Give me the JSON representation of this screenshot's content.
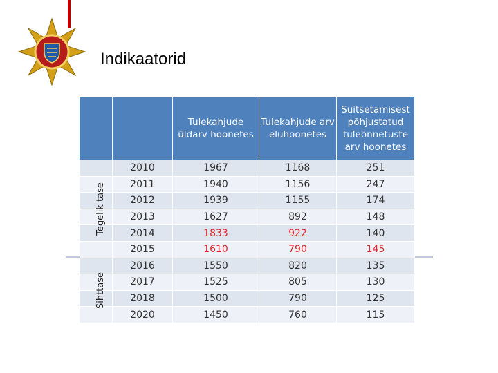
{
  "header": {
    "title": "Indikaatorid"
  },
  "table": {
    "columns": [
      "",
      "",
      "Tulekahjude üldarv hoonetes",
      "Tulekahjude arv eluhoonetes",
      "Suitsetamisest põhjustatud tuleõnnetuste arv hoonetes"
    ],
    "groups": [
      {
        "label": "Tegelik tase",
        "rows": 6
      },
      {
        "label": "Sihttase",
        "rows": 4
      }
    ],
    "rows": [
      [
        2010,
        1967,
        1168,
        251
      ],
      [
        2011,
        1940,
        1156,
        247
      ],
      [
        2012,
        1939,
        1155,
        174
      ],
      [
        2013,
        1627,
        892,
        148
      ],
      [
        2014,
        1833,
        922,
        140
      ],
      [
        2015,
        1610,
        790,
        145
      ],
      [
        2016,
        1550,
        820,
        135
      ],
      [
        2017,
        1525,
        805,
        130
      ],
      [
        2018,
        1500,
        790,
        125
      ],
      [
        2020,
        1450,
        760,
        115
      ]
    ],
    "highlight": {
      "color": "#e3262b",
      "cells": [
        "4.1",
        "4.2",
        "5.1",
        "5.2",
        "5.3"
      ]
    }
  }
}
